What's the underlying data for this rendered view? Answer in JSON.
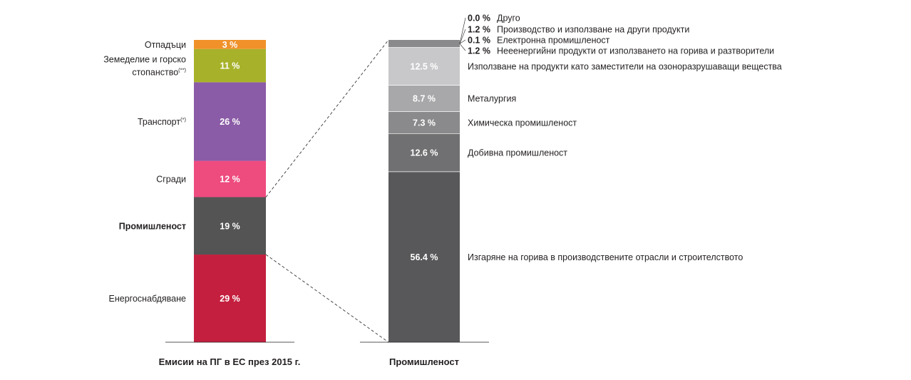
{
  "chart_data": [
    {
      "type": "bar",
      "stacked": true,
      "xlabel": "Емисии на ПГ в ЕС през 2015 г.",
      "ylim": [
        0,
        100
      ],
      "unit": "%",
      "segments": [
        {
          "name": "Енергоснабдяване",
          "value": 29,
          "label": "29 %",
          "color": "#c41f3e"
        },
        {
          "name": "Промишленост",
          "value": 19,
          "label": "19 %",
          "color": "#545454",
          "emphasis": true
        },
        {
          "name": "Сгради",
          "value": 12,
          "label": "12 %",
          "color": "#ee4b7f"
        },
        {
          "name": "Транспорт",
          "sup": "(*)",
          "value": 26,
          "label": "26 %",
          "color": "#8a5ba6"
        },
        {
          "name": "Земеделие и горско",
          "name2": "стопанство",
          "sup": "(**)",
          "value": 11,
          "label": "11 %",
          "color": "#a7b22a"
        },
        {
          "name": "Отпадъци",
          "value": 3,
          "label": "3 %",
          "color": "#f0912a"
        }
      ]
    },
    {
      "type": "bar",
      "stacked": true,
      "xlabel": "Промишленост",
      "ylim": [
        0,
        100
      ],
      "unit": "%",
      "segments": [
        {
          "name": "Изгаряне на горива в производствените отрасли и строителството",
          "value": 56.4,
          "label": "56.4 %",
          "color": "#58585a"
        },
        {
          "name": "Добивна промишленост",
          "value": 12.6,
          "label": "12.6 %",
          "color": "#707072"
        },
        {
          "name": "Химическа промишленост",
          "value": 7.3,
          "label": "7.3 %",
          "color": "#8a8a8c"
        },
        {
          "name": "Металургия",
          "value": 8.7,
          "label": "8.7 %",
          "color": "#a8a8aa"
        },
        {
          "name": "Използване на продукти като заместители на озоноразрушаващи вещества",
          "value": 12.5,
          "label": "12.5 %",
          "color": "#c8c8ca"
        },
        {
          "name": "Нееенергийни продукти от използването на горива и разтворители",
          "value": 1.2,
          "label": "1.2 %",
          "color": "#8a8a8c",
          "external": true
        },
        {
          "name": "Електронна промишленост",
          "value": 0.1,
          "label": "0.1 %",
          "color": "#8a8a8c",
          "external": true
        },
        {
          "name": "Производство и използване на други продукти",
          "value": 1.2,
          "label": "1.2 %",
          "color": "#8a8a8c",
          "external": true
        },
        {
          "name": "Друго",
          "value": 0.0,
          "label": "0.0 %",
          "color": "#8a8a8c",
          "external": true
        }
      ]
    }
  ]
}
